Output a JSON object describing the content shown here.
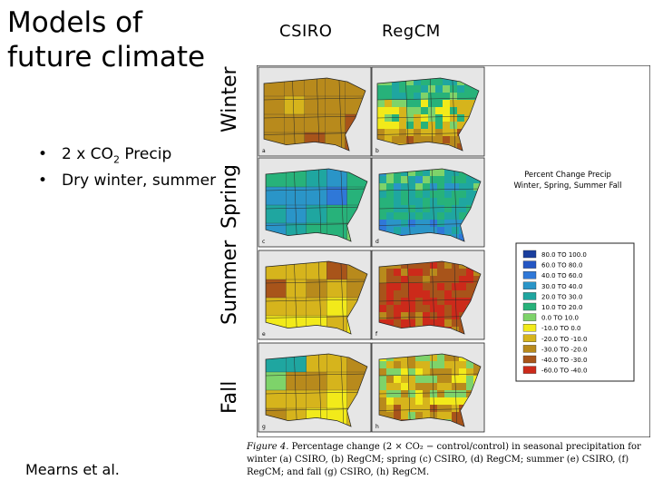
{
  "title": "Models of future climate",
  "bullets": [
    {
      "prefix": "2 x CO",
      "sub": "2",
      "suffix": " Precip"
    },
    {
      "text": "Dry winter, summer"
    }
  ],
  "author": "Mearns et al.",
  "columns": [
    "CSIRO",
    "RegCM"
  ],
  "rows": [
    "Winter",
    "Spring",
    "Summer",
    "Fall"
  ],
  "panel_letters": [
    "a",
    "b",
    "c",
    "d",
    "e",
    "f",
    "g",
    "h"
  ],
  "figure_heading": [
    "Percent Change Precip",
    "Winter, Spring, Summer Fall"
  ],
  "legend": {
    "entries": [
      {
        "label": "80.0 TO 100.0",
        "color": "#1a3e9e"
      },
      {
        "label": "60.0 TO 80.0",
        "color": "#2456c4"
      },
      {
        "label": "40.0 TO 60.0",
        "color": "#2f78d8"
      },
      {
        "label": "30.0 TO 40.0",
        "color": "#2a95c8"
      },
      {
        "label": "20.0 TO 30.0",
        "color": "#1fa6a0"
      },
      {
        "label": "10.0 TO 20.0",
        "color": "#27b27a"
      },
      {
        "label": "0.0 TO 10.0",
        "color": "#7ed36a"
      },
      {
        "label": "-10.0 TO 0.0",
        "color": "#f2ea1a"
      },
      {
        "label": "-20.0 TO -10.0",
        "color": "#d6b41c"
      },
      {
        "label": "-30.0 TO -20.0",
        "color": "#b88a1c"
      },
      {
        "label": "-40.0 TO -30.0",
        "color": "#a8541a"
      },
      {
        "label": "-60.0 TO -40.0",
        "color": "#cc2a1a"
      }
    ]
  },
  "caption": {
    "label": "Figure 4.",
    "text": " Percentage change (2 × CO₂ − control/control) in seasonal precipitation for winter (a) CSIRO, (b) RegCM; spring (c) CSIRO, (d) RegCM; summer (e) CSIRO, (f) RegCM; and fall (g) CSIRO, (h) RegCM."
  }
}
